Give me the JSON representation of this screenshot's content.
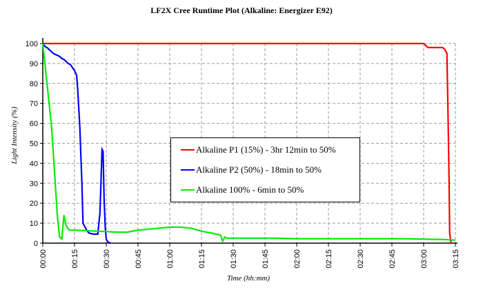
{
  "chart_data": {
    "type": "line",
    "title": "LF2X Cree Runtime Plot (Alkaline: Energizer E92)",
    "xlabel": "Time (hh:mm)",
    "ylabel": "Light Intensity (%)",
    "xlim_minutes": [
      0,
      195
    ],
    "ylim": [
      0,
      100
    ],
    "grid": true,
    "legend_position": "center",
    "x_tick_labels": [
      "00:00",
      "00:15",
      "00:30",
      "00:45",
      "01:00",
      "01:15",
      "01:30",
      "01:45",
      "02:00",
      "02:15",
      "02:30",
      "02:45",
      "03:00",
      "03:15"
    ],
    "y_tick_labels": [
      "0",
      "10",
      "20",
      "30",
      "40",
      "50",
      "60",
      "70",
      "80",
      "90",
      "100"
    ],
    "series": [
      {
        "name": "Alkaline P1 (15%) - 3hr 12min to 50%",
        "color": "#ff0000",
        "x_minutes": [
          0,
          180,
          181,
          182,
          189,
          190,
          191,
          191.5,
          192,
          192.3,
          192.8,
          193
        ],
        "values": [
          100,
          100,
          99,
          98,
          98,
          97,
          95,
          65,
          32,
          5,
          1,
          0
        ]
      },
      {
        "name": "Alkaline P2 (50%) - 18min to 50%",
        "color": "#0000ff",
        "x_minutes": [
          0,
          1,
          2,
          3,
          4,
          5,
          6,
          7,
          8,
          9,
          10,
          11,
          12,
          13,
          14,
          15,
          16,
          16.5,
          17,
          17.5,
          18,
          18.5,
          19,
          20,
          21,
          22,
          24,
          26,
          27,
          27.5,
          28,
          28.5,
          29,
          29.5,
          30,
          30.5,
          31,
          32
        ],
        "values": [
          100,
          98.5,
          98,
          97,
          96,
          95,
          94.5,
          94,
          93.5,
          92.5,
          92,
          91,
          90,
          89.5,
          88,
          86.5,
          84,
          77,
          68,
          58,
          44,
          30,
          10,
          8,
          6,
          5,
          4.5,
          4.5,
          15,
          30,
          47,
          46,
          22,
          8,
          2,
          1,
          0.5,
          0
        ]
      },
      {
        "name": "Alkaline 100% - 6min to 50%",
        "color": "#00ee00",
        "x_minutes": [
          0,
          1,
          2,
          3,
          4,
          5,
          6,
          7,
          8,
          9,
          10,
          11,
          11.5,
          12,
          13,
          14,
          15,
          20,
          25,
          30,
          35,
          40,
          45,
          50,
          55,
          60,
          65,
          70,
          75,
          80,
          84,
          85,
          86,
          87,
          88,
          100,
          110,
          120,
          150,
          170,
          190,
          195
        ],
        "values": [
          100,
          90,
          80,
          70,
          60,
          45,
          28,
          12,
          3,
          2,
          14,
          9,
          8,
          7,
          6.5,
          6.5,
          6.5,
          6.3,
          6,
          5.8,
          5.5,
          5.5,
          6.5,
          7,
          7.5,
          8,
          8,
          7.5,
          6,
          5,
          4,
          1,
          3,
          2.5,
          2.5,
          2.5,
          2.5,
          2.2,
          2.2,
          2.2,
          1.8,
          1.5
        ]
      }
    ]
  },
  "labels": {
    "title": "LF2X Cree Runtime Plot (Alkaline: Energizer E92)",
    "xlabel": "Time (hh:mm)",
    "ylabel": "Light Intensity (%)",
    "legend": [
      "Alkaline P1 (15%) - 3hr 12min to 50%",
      "Alkaline P2 (50%) - 18min to 50%",
      "Alkaline 100% - 6min to 50%"
    ]
  }
}
